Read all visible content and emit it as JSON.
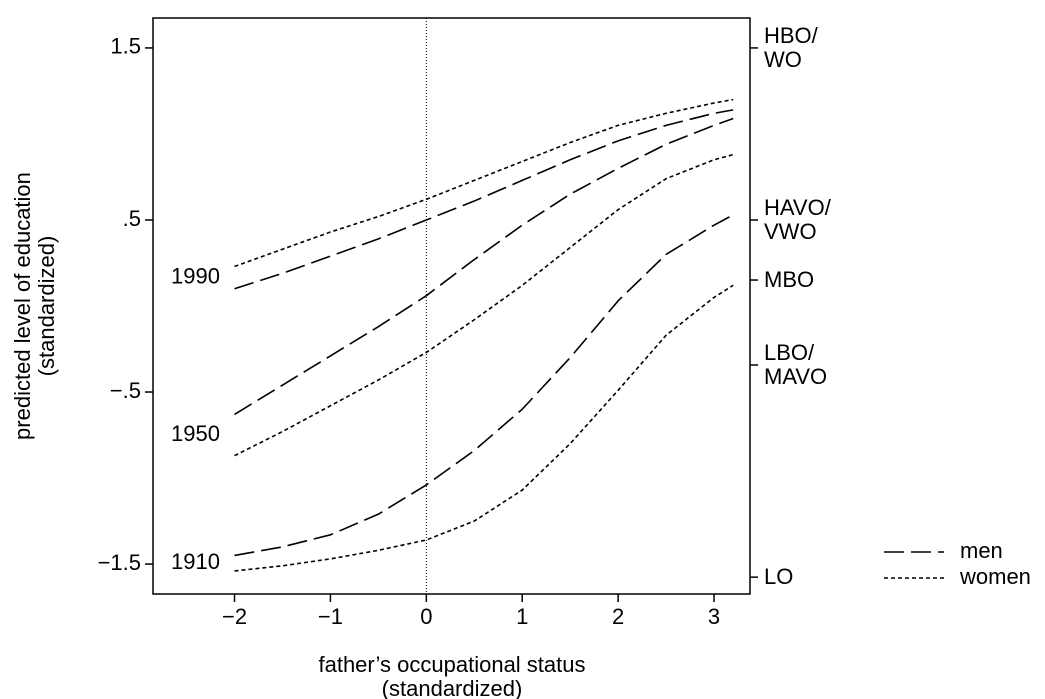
{
  "chart_data": {
    "type": "line",
    "ylabel": "predicted level of education\n(standardized)",
    "xlabel": "father’s occupational status\n(standardized)",
    "x": [
      -2,
      -1.5,
      -1,
      -0.5,
      0,
      0.5,
      1,
      1.5,
      2,
      2.5,
      3,
      3.2
    ],
    "series": [
      {
        "name": "men",
        "cohort": "1990",
        "color": "#000000",
        "line_style": "long-dash",
        "values": [
          0.1,
          0.19,
          0.29,
          0.39,
          0.5,
          0.61,
          0.73,
          0.85,
          0.96,
          1.05,
          1.12,
          1.14
        ]
      },
      {
        "name": "women",
        "cohort": "1990",
        "color": "#000000",
        "line_style": "short-dash",
        "values": [
          0.23,
          0.33,
          0.43,
          0.52,
          0.62,
          0.73,
          0.84,
          0.95,
          1.05,
          1.12,
          1.18,
          1.2
        ]
      },
      {
        "name": "men",
        "cohort": "1950",
        "color": "#000000",
        "line_style": "long-dash",
        "values": [
          -0.63,
          -0.46,
          -0.29,
          -0.12,
          0.06,
          0.27,
          0.47,
          0.65,
          0.8,
          0.94,
          1.05,
          1.09
        ]
      },
      {
        "name": "women",
        "cohort": "1950",
        "color": "#000000",
        "line_style": "short-dash",
        "values": [
          -0.87,
          -0.73,
          -0.58,
          -0.43,
          -0.27,
          -0.08,
          0.12,
          0.34,
          0.56,
          0.74,
          0.85,
          0.88
        ]
      },
      {
        "name": "men",
        "cohort": "1910",
        "color": "#000000",
        "line_style": "long-dash",
        "values": [
          -1.45,
          -1.4,
          -1.33,
          -1.21,
          -1.04,
          -0.84,
          -0.6,
          -0.3,
          0.03,
          0.3,
          0.47,
          0.53
        ]
      },
      {
        "name": "women",
        "cohort": "1910",
        "color": "#000000",
        "line_style": "short-dash",
        "values": [
          -1.54,
          -1.51,
          -1.47,
          -1.42,
          -1.36,
          -1.25,
          -1.07,
          -0.8,
          -0.49,
          -0.17,
          0.05,
          0.12
        ]
      }
    ],
    "xlim": [
      -2.85,
      3.375
    ],
    "xticks": [
      {
        "value": -2,
        "label": "−2"
      },
      {
        "value": -1,
        "label": "−1"
      },
      0,
      1,
      2,
      3
    ],
    "ylim": [
      -1.674,
      1.674
    ],
    "yticks": [
      {
        "value": -1.5,
        "label": "−1.5"
      },
      {
        "value": -0.5,
        "label": "−.5"
      },
      {
        "value": 0.5,
        "label": ".5"
      },
      1.5
    ],
    "y2lim": [
      -1.674,
      1.674
    ],
    "y2ticks": [
      {
        "value": -1.576,
        "label": "LO"
      },
      {
        "value": -0.343,
        "label": "LBO/\nMAVO"
      },
      {
        "value": 0.151,
        "label": "MBO"
      },
      {
        "value": 0.5,
        "label": "HAVO/\nVWO"
      },
      {
        "value": 1.5,
        "label": "HBO/\nWO"
      }
    ],
    "reference_line_x": 0,
    "grid": false,
    "legend": "right"
  }
}
